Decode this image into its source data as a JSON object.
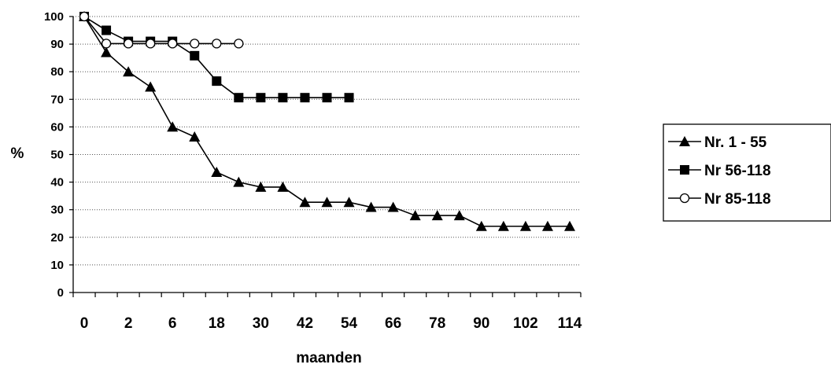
{
  "chart_data": {
    "type": "line",
    "xlabel": "maanden",
    "ylabel": "%",
    "ylim": [
      0,
      100
    ],
    "yticks": [
      "0",
      "10",
      "20",
      "30",
      "40",
      "50",
      "60",
      "70",
      "80",
      "90",
      "100"
    ],
    "xticks": [
      "0",
      "2",
      "6",
      "18",
      "30",
      "42",
      "54",
      "66",
      "78",
      "90",
      "102",
      "114"
    ],
    "grid": "horizontal dotted",
    "legend_position": "right",
    "series": [
      {
        "name": "Nr. 1 - 55",
        "marker": "triangle-filled",
        "x": [
          0,
          1,
          2,
          3,
          4,
          5,
          6,
          7,
          8,
          9,
          10,
          11,
          12,
          13,
          14,
          15,
          16,
          17,
          18,
          19,
          20,
          21,
          22
        ],
        "y": [
          100,
          87,
          80,
          74.5,
          60,
          56.4,
          43.6,
          40,
          38.2,
          38.2,
          32.7,
          32.7,
          32.7,
          30.9,
          30.9,
          27.9,
          27.9,
          27.9,
          24,
          24,
          24,
          24,
          24
        ]
      },
      {
        "name": "Nr 56-118",
        "marker": "square-filled",
        "x": [
          0,
          1,
          2,
          3,
          4,
          5,
          6,
          7,
          8,
          9,
          10,
          11,
          12
        ],
        "y": [
          100,
          95,
          91,
          91,
          91,
          85.8,
          76.6,
          70.6,
          70.6,
          70.6,
          70.6,
          70.6,
          70.6
        ]
      },
      {
        "name": "Nr 85-118",
        "marker": "circle-open",
        "x": [
          0,
          1,
          2,
          3,
          4,
          5,
          6,
          7
        ],
        "y": [
          100,
          90.2,
          90.2,
          90.2,
          90.2,
          90.2,
          90.2,
          90.2
        ]
      }
    ]
  }
}
